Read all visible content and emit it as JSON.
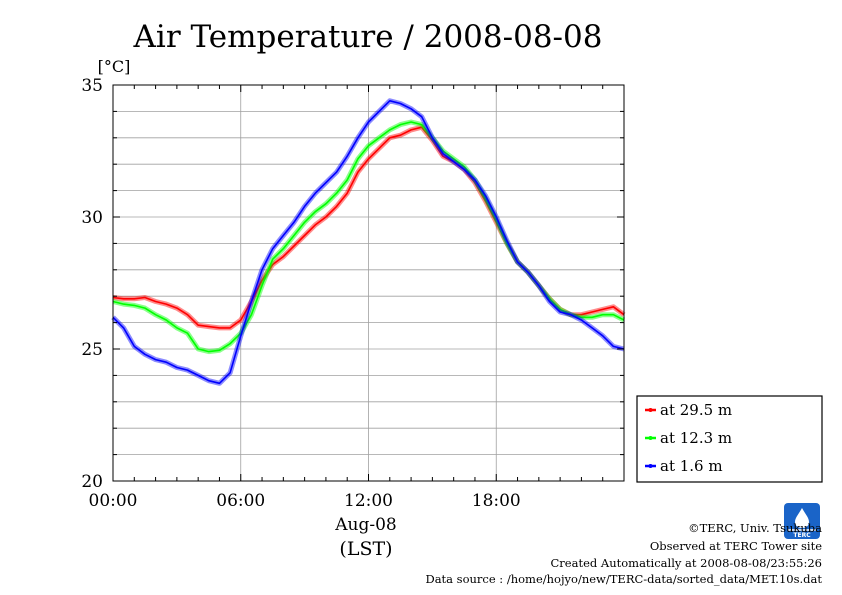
{
  "page": {
    "credits": [
      "©TERC, Univ. Tsukuba",
      "Observed at TERC Tower site",
      "Created Automatically at 2008-08-08/23:55:26",
      "Data source : /home/hojyo/new/TERC-data/sorted_data/MET.10s.dat"
    ],
    "logo_text": "TERC"
  },
  "chart_data": {
    "type": "line",
    "title": "Air Temperature / 2008-08-08",
    "ylabel": "[°C]",
    "xlabel_date": "Aug-08",
    "xlabel_zone": "(LST)",
    "x_unit": "hours",
    "xlim": [
      0,
      24
    ],
    "ylim": [
      20,
      35
    ],
    "x_ticks": [
      0,
      6,
      12,
      18
    ],
    "x_tick_labels": [
      "00:00",
      "06:00",
      "12:00",
      "18:00"
    ],
    "y_ticks": [
      20,
      25,
      30,
      35
    ],
    "y_tick_labels": [
      "20",
      "25",
      "30",
      "35"
    ],
    "y_gridlines": [
      21,
      22,
      23,
      24,
      25,
      26,
      27,
      28,
      29,
      30,
      31,
      32,
      33,
      34
    ],
    "x_gridlines": [
      0,
      6,
      12,
      18
    ],
    "grid": true,
    "legend_position": "right-bottom, outside plot",
    "series": [
      {
        "name": "at 29.5 m",
        "color": "#ff0000",
        "x": [
          0,
          0.5,
          1,
          1.5,
          2,
          2.5,
          3,
          3.5,
          4,
          4.5,
          5,
          5.5,
          6,
          6.5,
          7,
          7.5,
          8,
          8.5,
          9,
          9.5,
          10,
          10.5,
          11,
          11.5,
          12,
          12.5,
          13,
          13.5,
          14,
          14.5,
          15,
          15.5,
          16,
          16.5,
          17,
          17.5,
          18,
          18.5,
          19,
          19.5,
          20,
          20.5,
          21,
          21.5,
          22,
          22.5,
          23,
          23.5,
          24
        ],
        "y": [
          26.95,
          26.9,
          26.9,
          26.95,
          26.8,
          26.7,
          26.55,
          26.3,
          25.9,
          25.85,
          25.8,
          25.8,
          26.1,
          26.8,
          27.6,
          28.2,
          28.5,
          28.9,
          29.3,
          29.7,
          30.0,
          30.4,
          30.9,
          31.7,
          32.2,
          32.6,
          33.0,
          33.1,
          33.3,
          33.4,
          32.9,
          32.3,
          32.1,
          31.8,
          31.3,
          30.6,
          29.8,
          29.0,
          28.3,
          27.9,
          27.4,
          26.9,
          26.5,
          26.3,
          26.3,
          26.4,
          26.5,
          26.6,
          26.3
        ]
      },
      {
        "name": "at 12.3 m",
        "color": "#00ff00",
        "x": [
          0,
          0.5,
          1,
          1.5,
          2,
          2.5,
          3,
          3.5,
          4,
          4.5,
          5,
          5.5,
          6,
          6.5,
          7,
          7.5,
          8,
          8.5,
          9,
          9.5,
          10,
          10.5,
          11,
          11.5,
          12,
          12.5,
          13,
          13.5,
          14,
          14.5,
          15,
          15.5,
          16,
          16.5,
          17,
          17.5,
          18,
          18.5,
          19,
          19.5,
          20,
          20.5,
          21,
          21.5,
          22,
          22.5,
          23,
          23.5,
          24
        ],
        "y": [
          26.8,
          26.7,
          26.65,
          26.55,
          26.3,
          26.1,
          25.8,
          25.6,
          25.0,
          24.9,
          24.95,
          25.2,
          25.6,
          26.3,
          27.4,
          28.4,
          28.8,
          29.3,
          29.8,
          30.2,
          30.5,
          30.9,
          31.4,
          32.2,
          32.7,
          33.0,
          33.3,
          33.5,
          33.6,
          33.5,
          33.0,
          32.5,
          32.2,
          31.9,
          31.4,
          30.7,
          29.9,
          29.0,
          28.3,
          27.9,
          27.4,
          26.9,
          26.5,
          26.3,
          26.2,
          26.2,
          26.3,
          26.3,
          26.1
        ]
      },
      {
        "name": "at 1.6 m",
        "color": "#0000ff",
        "x": [
          0,
          0.5,
          1,
          1.5,
          2,
          2.5,
          3,
          3.5,
          4,
          4.5,
          5,
          5.5,
          6,
          6.5,
          7,
          7.5,
          8,
          8.5,
          9,
          9.5,
          10,
          10.5,
          11,
          11.5,
          12,
          12.5,
          13,
          13.5,
          14,
          14.5,
          15,
          15.5,
          16,
          16.5,
          17,
          17.5,
          18,
          18.5,
          19,
          19.5,
          20,
          20.5,
          21,
          21.5,
          22,
          22.5,
          23,
          23.5,
          24
        ],
        "y": [
          26.2,
          25.8,
          25.1,
          24.8,
          24.6,
          24.5,
          24.3,
          24.2,
          24.0,
          23.8,
          23.7,
          24.1,
          25.5,
          26.8,
          28.0,
          28.8,
          29.3,
          29.8,
          30.4,
          30.9,
          31.3,
          31.7,
          32.3,
          33.0,
          33.6,
          34.0,
          34.4,
          34.3,
          34.1,
          33.8,
          33.0,
          32.4,
          32.1,
          31.8,
          31.4,
          30.8,
          30.0,
          29.1,
          28.3,
          27.9,
          27.4,
          26.8,
          26.4,
          26.3,
          26.1,
          25.8,
          25.5,
          25.1,
          25.0
        ]
      }
    ]
  }
}
